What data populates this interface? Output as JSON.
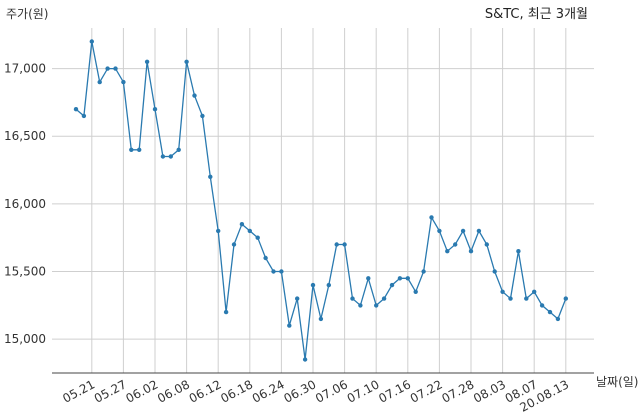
{
  "chart_data": {
    "type": "line",
    "title": "S&TC, 최근 3개월",
    "ylabel": "주가(원)",
    "xlabel": "날짜(일)",
    "ylim": [
      14750,
      17300
    ],
    "yticks": [
      15000,
      15500,
      16000,
      16500,
      17000
    ],
    "ytick_labels": [
      "15,000",
      "15,500",
      "16,000",
      "16,500",
      "17,000"
    ],
    "xtick_labels": [
      "05.21",
      "05.27",
      "06.02",
      "06.08",
      "06.12",
      "06.18",
      "06.24",
      "06.30",
      "07.06",
      "07.10",
      "07.16",
      "07.22",
      "07.28",
      "08.03",
      "08.07",
      "20.08.13"
    ],
    "xtick_positions": [
      2,
      6,
      10,
      14,
      18,
      22,
      26,
      30,
      34,
      38,
      42,
      46,
      50,
      54,
      58,
      62
    ],
    "grid": true,
    "color": "#2a7ab0",
    "series": [
      {
        "values": [
          16700,
          16650,
          17200,
          16900,
          17000,
          17000,
          16900,
          16400,
          16400,
          17050,
          16700,
          16350,
          16350,
          16400,
          17050,
          16800,
          16650,
          16200,
          15800,
          15200,
          15700,
          15850,
          15800,
          15750,
          15600,
          15500,
          15500,
          15100,
          15300,
          14850,
          15400,
          15150,
          15400,
          15700,
          15700,
          15300,
          15250,
          15450,
          15250,
          15300,
          15400,
          15450,
          15450,
          15350,
          15500,
          15900,
          15800,
          15650,
          15700,
          15800,
          15650,
          15800,
          15700,
          15500,
          15350,
          15300,
          15650,
          15300,
          15350,
          15250,
          15200,
          15150,
          15300
        ]
      }
    ]
  }
}
